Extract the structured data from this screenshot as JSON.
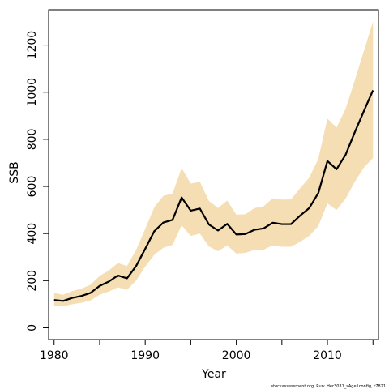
{
  "chart_data": {
    "type": "line",
    "title": "",
    "xlabel": "Year",
    "ylabel": "SSB",
    "xlim": [
      1979.4,
      2015.6
    ],
    "ylim": [
      -50,
      1350
    ],
    "x_ticks": [
      1980,
      1990,
      2000,
      2010
    ],
    "x_minor_ticks": [
      1985,
      1995,
      2005,
      2015
    ],
    "y_ticks": [
      0,
      200,
      400,
      600,
      800,
      1000,
      1200
    ],
    "grid": false,
    "legend": "none",
    "colors": {
      "band": "#f5deb3",
      "line": "#000000",
      "axis": "#000000"
    },
    "x": [
      1980,
      1981,
      1982,
      1983,
      1984,
      1985,
      1986,
      1987,
      1988,
      1989,
      1990,
      1991,
      1992,
      1993,
      1994,
      1995,
      1996,
      1997,
      1998,
      1999,
      2000,
      2001,
      2002,
      2003,
      2004,
      2005,
      2006,
      2007,
      2008,
      2009,
      2010,
      2011,
      2012,
      2013,
      2014,
      2015
    ],
    "series": [
      {
        "values": [
          118,
          114,
          127,
          135,
          148,
          178,
          196,
          222,
          210,
          262,
          335,
          410,
          447,
          458,
          553,
          497,
          506,
          438,
          413,
          441,
          396,
          398,
          416,
          422,
          446,
          440,
          440,
          476,
          508,
          572,
          708,
          673,
          735,
          830,
          920,
          1008
        ]
      }
    ],
    "band_upper": [
      148,
      140,
      156,
      166,
      183,
      220,
      243,
      275,
      262,
      330,
      420,
      512,
      560,
      570,
      678,
      612,
      620,
      538,
      508,
      540,
      480,
      482,
      508,
      516,
      550,
      544,
      545,
      592,
      637,
      717,
      888,
      850,
      930,
      1050,
      1175,
      1300
    ],
    "band_lower": [
      92,
      92,
      100,
      106,
      116,
      140,
      154,
      172,
      161,
      200,
      260,
      310,
      340,
      352,
      435,
      390,
      400,
      345,
      325,
      350,
      315,
      318,
      330,
      332,
      350,
      344,
      344,
      365,
      390,
      432,
      528,
      500,
      548,
      620,
      680,
      720
    ],
    "footnote": "stockassessment.org, Run: Her3031_sAge1config, r7821"
  }
}
